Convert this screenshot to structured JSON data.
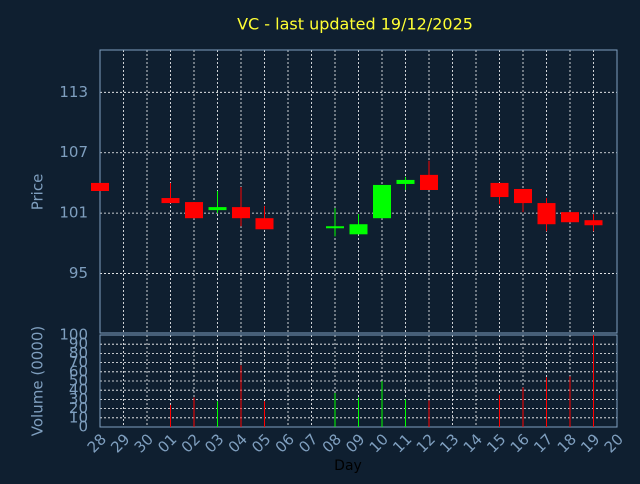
{
  "chart_data": {
    "type": "candlestick",
    "title": "VC - last updated 19/12/2025",
    "y_label": "Price",
    "y2_label": "Volume (0000)",
    "x_label": "Day",
    "categories": [
      "28",
      "29",
      "30",
      "01",
      "02",
      "03",
      "04",
      "05",
      "06",
      "07",
      "08",
      "09",
      "10",
      "11",
      "12",
      "13",
      "14",
      "15",
      "16",
      "17",
      "18",
      "19",
      "20"
    ],
    "open": [
      104.0,
      null,
      null,
      102.5,
      102.1,
      101.3,
      101.6,
      100.5,
      null,
      null,
      99.5,
      98.9,
      100.5,
      103.9,
      104.8,
      null,
      null,
      104.0,
      103.4,
      102.0,
      101.1,
      100.3,
      null
    ],
    "high": [
      104.0,
      null,
      null,
      104.0,
      102.1,
      103.2,
      103.6,
      101.7,
      null,
      null,
      101.5,
      100.9,
      103.8,
      104.6,
      106.2,
      null,
      null,
      104.0,
      103.4,
      102.5,
      101.1,
      100.9,
      null
    ],
    "low": [
      103.2,
      null,
      null,
      102.0,
      100.5,
      101.0,
      99.7,
      99.4,
      null,
      null,
      98.7,
      98.9,
      100.5,
      103.3,
      103.3,
      null,
      null,
      101.9,
      101.1,
      99.2,
      100.1,
      99.2,
      null
    ],
    "close": [
      103.2,
      null,
      null,
      102.0,
      100.5,
      101.6,
      100.5,
      99.4,
      null,
      null,
      99.7,
      99.9,
      103.8,
      104.3,
      103.3,
      null,
      null,
      102.6,
      102.0,
      99.9,
      100.1,
      99.8,
      null
    ],
    "volume": [
      null,
      null,
      null,
      24,
      32,
      28,
      67,
      28,
      null,
      null,
      37,
      32,
      50,
      30,
      29,
      null,
      null,
      35,
      43,
      54,
      55,
      100,
      null
    ],
    "up_color": "#00ff00",
    "down_color": "#ff0000",
    "ylim": [
      89.1,
      117.2
    ],
    "yticks": [
      95,
      101,
      107,
      113
    ],
    "y2lim": [
      0,
      100
    ],
    "y2ticks": [
      0,
      10,
      20,
      30,
      40,
      50,
      60,
      70,
      80,
      90,
      100
    ],
    "grid": true
  }
}
